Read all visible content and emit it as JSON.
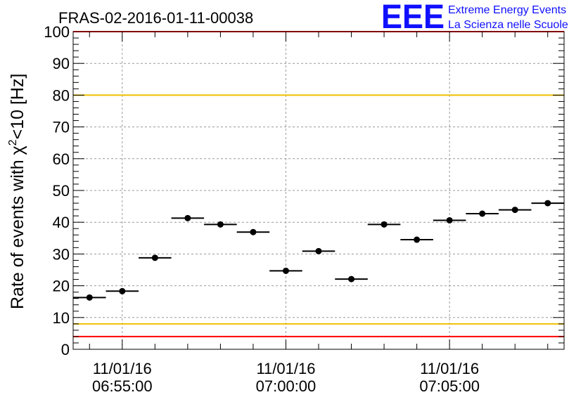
{
  "chart_data": {
    "type": "scatter",
    "title": "FRAS-02-2016-01-11-00038",
    "ylabel": {
      "main": "Rate of events with ",
      "symbol": "χ",
      "superscript": "2",
      "suffix": "<10 [Hz]"
    },
    "ylim": [
      0,
      100
    ],
    "y_major_ticks": [
      0,
      10,
      20,
      30,
      40,
      50,
      60,
      70,
      80,
      90,
      100
    ],
    "x_ticks": [
      {
        "minute": 3,
        "date": "11/01/16",
        "time": "06:55:00"
      },
      {
        "minute": 8,
        "date": "11/01/16",
        "time": "07:00:00"
      },
      {
        "minute": 13,
        "date": "11/01/16",
        "time": "07:05:00"
      }
    ],
    "xlim_minutes": [
      1.5,
      16.5
    ],
    "x_bin_width_minutes": 1,
    "grid": true,
    "points": [
      {
        "x": 2,
        "y": 16.3
      },
      {
        "x": 3,
        "y": 18.3
      },
      {
        "x": 4,
        "y": 28.8
      },
      {
        "x": 5,
        "y": 41.3
      },
      {
        "x": 6,
        "y": 39.3
      },
      {
        "x": 7,
        "y": 36.9
      },
      {
        "x": 8,
        "y": 24.7
      },
      {
        "x": 9,
        "y": 30.9
      },
      {
        "x": 10,
        "y": 22.1
      },
      {
        "x": 11,
        "y": 39.3
      },
      {
        "x": 12,
        "y": 34.5
      },
      {
        "x": 13,
        "y": 40.6
      },
      {
        "x": 14,
        "y": 42.7
      },
      {
        "x": 15,
        "y": 43.9
      },
      {
        "x": 16,
        "y": 46.0
      }
    ],
    "reference_lines": [
      {
        "y": 80,
        "color": "#f0c000"
      },
      {
        "y": 8,
        "color": "#f0c000"
      },
      {
        "y": 4,
        "color": "#ff0000"
      },
      {
        "y": 100,
        "color": "#ff0000"
      }
    ]
  },
  "logo": {
    "mark": "EEE",
    "line1": "Extreme Energy Events",
    "line2": "La Scienza nelle Scuole",
    "color": "#1010ff"
  }
}
